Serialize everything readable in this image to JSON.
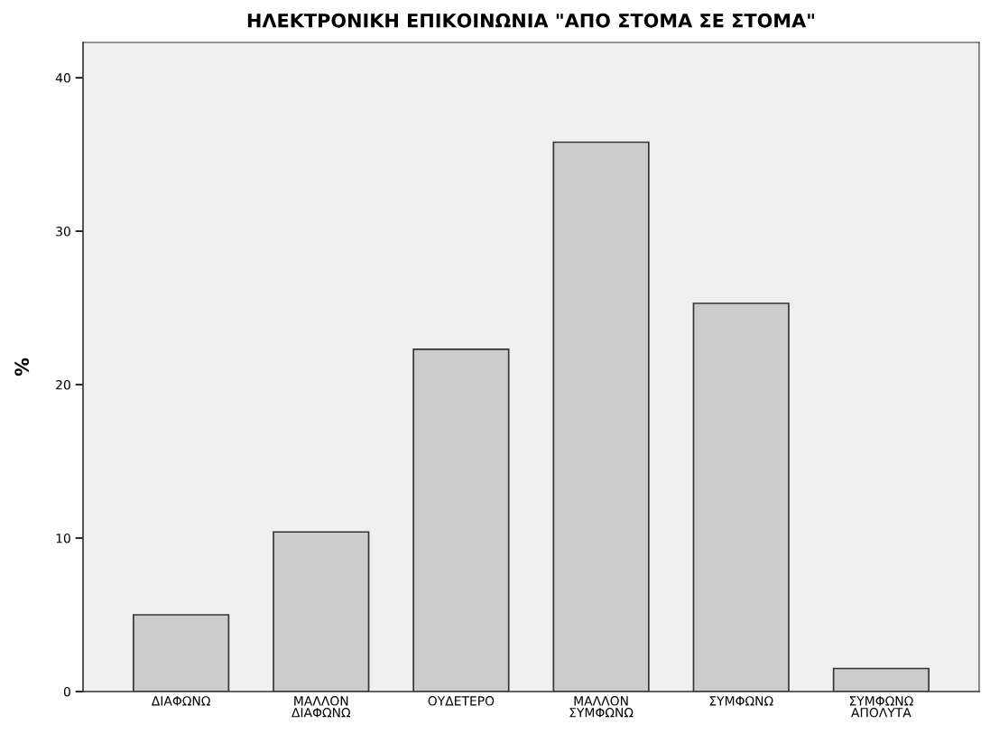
{
  "chart_data": {
    "type": "bar",
    "title": "ΗΛΕΚΤΡΟΝΙΚΗ ΕΠΙΚΟΙΝΩΝΙΑ \"ΑΠΟ ΣΤΟΜΑ ΣΕ ΣΤΟΜΑ\"",
    "ylabel": "%",
    "categories": [
      "ΔΙΑΦΩΝΩ",
      "ΜΑΛΛΟΝ\nΔΙΑΦΩΝΩ",
      "ΟΥΔΕΤΕΡΟ",
      "ΜΑΛΛΟΝ\nΣΥΜΦΩΝΩ",
      "ΣΥΜΦΩΝΩ",
      "ΣΥΜΦΩΝΩ\nΑΠΟΛΥΤΑ"
    ],
    "values": [
      5.0,
      10.4,
      22.3,
      35.8,
      25.3,
      1.5
    ],
    "color": "#cccccc",
    "ylim": [
      0,
      42.3
    ],
    "yticks": [
      0,
      10,
      20,
      30,
      40
    ],
    "grid": false
  }
}
